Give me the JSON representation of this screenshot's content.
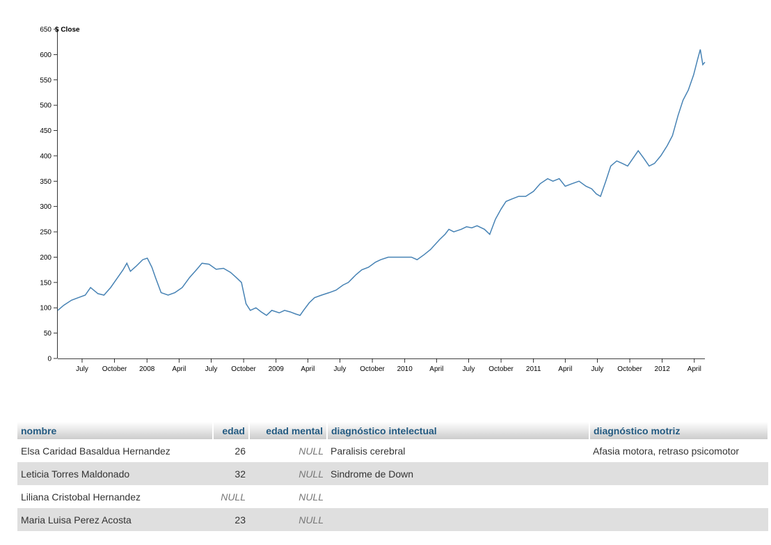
{
  "chart_data": {
    "type": "line",
    "title": "",
    "xlabel": "",
    "ylabel": "$ Close",
    "ylim": [
      0,
      650
    ],
    "y_ticks": [
      0,
      50,
      100,
      150,
      200,
      250,
      300,
      350,
      400,
      450,
      500,
      550,
      600,
      650
    ],
    "x_range": [
      "2007-04-23",
      "2012-05-01"
    ],
    "x_ticks": [
      {
        "date": "2007-07-01",
        "label": "July"
      },
      {
        "date": "2007-10-01",
        "label": "October"
      },
      {
        "date": "2008-01-01",
        "label": "2008"
      },
      {
        "date": "2008-04-01",
        "label": "April"
      },
      {
        "date": "2008-07-01",
        "label": "July"
      },
      {
        "date": "2008-10-01",
        "label": "October"
      },
      {
        "date": "2009-01-01",
        "label": "2009"
      },
      {
        "date": "2009-04-01",
        "label": "April"
      },
      {
        "date": "2009-07-01",
        "label": "July"
      },
      {
        "date": "2009-10-01",
        "label": "October"
      },
      {
        "date": "2010-01-01",
        "label": "2010"
      },
      {
        "date": "2010-04-01",
        "label": "April"
      },
      {
        "date": "2010-07-01",
        "label": "July"
      },
      {
        "date": "2010-10-01",
        "label": "October"
      },
      {
        "date": "2011-01-01",
        "label": "2011"
      },
      {
        "date": "2011-04-01",
        "label": "April"
      },
      {
        "date": "2011-07-01",
        "label": "July"
      },
      {
        "date": "2011-10-01",
        "label": "October"
      },
      {
        "date": "2012-01-01",
        "label": "2012"
      },
      {
        "date": "2012-04-01",
        "label": "April"
      }
    ],
    "line_color": "#4682b4",
    "grid": false,
    "series": [
      {
        "x": [
          "2007-04-23",
          "2007-05-10",
          "2007-06-01",
          "2007-06-20",
          "2007-07-10",
          "2007-07-25",
          "2007-08-15",
          "2007-09-01",
          "2007-09-20",
          "2007-10-10",
          "2007-10-25",
          "2007-11-05",
          "2007-11-15",
          "2007-12-01",
          "2007-12-20",
          "2008-01-02",
          "2008-01-15",
          "2008-01-25",
          "2008-02-10",
          "2008-03-01",
          "2008-03-20",
          "2008-04-10",
          "2008-05-01",
          "2008-05-20",
          "2008-06-05",
          "2008-06-25",
          "2008-07-15",
          "2008-08-05",
          "2008-08-25",
          "2008-09-10",
          "2008-09-25",
          "2008-10-08",
          "2008-10-20",
          "2008-11-05",
          "2008-11-20",
          "2008-12-05",
          "2008-12-20",
          "2009-01-10",
          "2009-01-25",
          "2009-02-10",
          "2009-02-25",
          "2009-03-10",
          "2009-03-20",
          "2009-04-05",
          "2009-04-20",
          "2009-05-10",
          "2009-06-01",
          "2009-06-20",
          "2009-07-10",
          "2009-07-25",
          "2009-08-15",
          "2009-09-01",
          "2009-09-20",
          "2009-10-10",
          "2009-10-25",
          "2009-11-15",
          "2009-12-10",
          "2009-12-28",
          "2010-01-20",
          "2010-02-05",
          "2010-02-25",
          "2010-03-15",
          "2010-04-10",
          "2010-04-25",
          "2010-05-06",
          "2010-05-20",
          "2010-06-10",
          "2010-06-25",
          "2010-07-10",
          "2010-07-25",
          "2010-08-15",
          "2010-08-30",
          "2010-09-15",
          "2010-10-01",
          "2010-10-15",
          "2010-11-01",
          "2010-11-20",
          "2010-12-10",
          "2011-01-01",
          "2011-01-20",
          "2011-02-10",
          "2011-02-25",
          "2011-03-15",
          "2011-04-01",
          "2011-04-20",
          "2011-05-10",
          "2011-05-30",
          "2011-06-15",
          "2011-06-28",
          "2011-07-10",
          "2011-07-25",
          "2011-08-08",
          "2011-08-25",
          "2011-09-10",
          "2011-09-25",
          "2011-10-10",
          "2011-10-25",
          "2011-11-10",
          "2011-11-25",
          "2011-12-10",
          "2011-12-28",
          "2012-01-15",
          "2012-01-30",
          "2012-02-15",
          "2012-02-29",
          "2012-03-15",
          "2012-03-30",
          "2012-04-10",
          "2012-04-18",
          "2012-04-25",
          "2012-05-01"
        ],
        "y": [
          95,
          105,
          115,
          120,
          125,
          140,
          128,
          125,
          140,
          160,
          175,
          188,
          172,
          182,
          195,
          198,
          180,
          160,
          130,
          125,
          130,
          140,
          160,
          175,
          188,
          186,
          176,
          178,
          170,
          160,
          150,
          108,
          95,
          100,
          92,
          85,
          95,
          90,
          95,
          92,
          88,
          85,
          95,
          110,
          120,
          125,
          130,
          135,
          145,
          150,
          165,
          175,
          180,
          190,
          195,
          200,
          200,
          200,
          200,
          195,
          205,
          215,
          235,
          245,
          255,
          250,
          255,
          260,
          258,
          262,
          255,
          245,
          275,
          295,
          310,
          315,
          320,
          320,
          330,
          345,
          355,
          350,
          355,
          340,
          345,
          350,
          340,
          335,
          325,
          320,
          350,
          380,
          390,
          385,
          380,
          395,
          410,
          395,
          380,
          385,
          400,
          420,
          440,
          480,
          510,
          530,
          560,
          590,
          610,
          580,
          585
        ]
      }
    ]
  },
  "table": {
    "headers": [
      "nombre",
      "edad",
      "edad mental",
      "diagnóstico intelectual",
      "diagnóstico motriz"
    ],
    "rows": [
      [
        "Elsa Caridad Basaldua Hernandez",
        "26",
        "NULL",
        "Paralisis cerebral",
        "Afasia motora, retraso psicomotor"
      ],
      [
        "Leticia Torres Maldonado",
        "32",
        "NULL",
        "Sindrome de Down",
        ""
      ],
      [
        "Liliana Cristobal Hernandez",
        "NULL",
        "NULL",
        "",
        ""
      ],
      [
        "Maria Luisa Perez Acosta",
        "23",
        "NULL",
        "",
        ""
      ]
    ]
  }
}
